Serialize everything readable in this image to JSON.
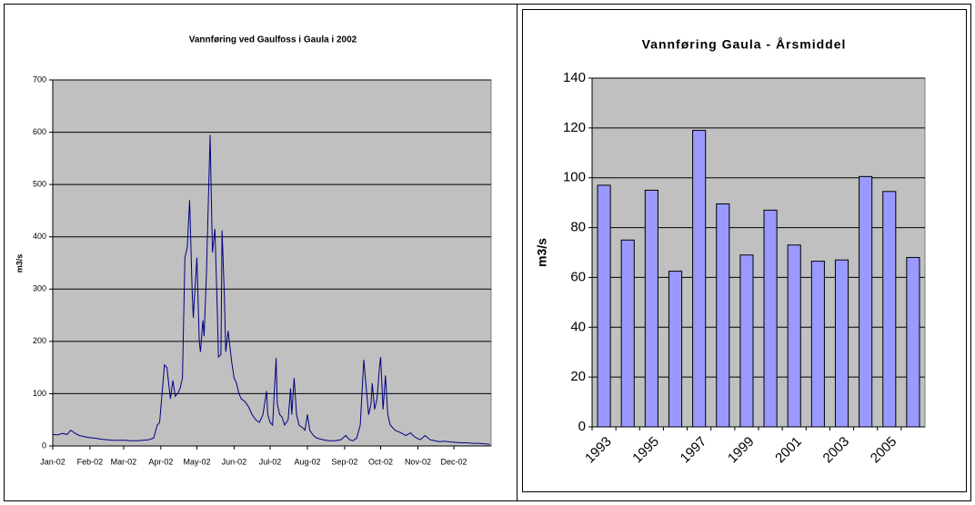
{
  "chart_data": [
    {
      "type": "line",
      "title": "Vannføring ved Gaulfoss i Gaula i 2002",
      "ylabel": "m3/s",
      "color": "#000080",
      "grid": true,
      "xlim": [
        0,
        365
      ],
      "xticks": [
        {
          "value": 0,
          "label": "Jan-02"
        },
        {
          "value": 31,
          "label": "Feb-02"
        },
        {
          "value": 59,
          "label": "Mar-02"
        },
        {
          "value": 90,
          "label": "Apr-02"
        },
        {
          "value": 120,
          "label": "May-02"
        },
        {
          "value": 151,
          "label": "Jun-02"
        },
        {
          "value": 181,
          "label": "Jul-02"
        },
        {
          "value": 212,
          "label": "Aug-02"
        },
        {
          "value": 243,
          "label": "Sep-02"
        },
        {
          "value": 273,
          "label": "Oct-02"
        },
        {
          "value": 304,
          "label": "Nov-02"
        },
        {
          "value": 334,
          "label": "Dec-02"
        }
      ],
      "ylim": [
        0,
        700
      ],
      "yticks": [
        0,
        100,
        200,
        300,
        400,
        500,
        600,
        700
      ],
      "x": [
        0,
        4,
        8,
        12,
        15,
        18,
        22,
        26,
        30,
        35,
        40,
        45,
        50,
        55,
        60,
        65,
        70,
        75,
        80,
        84,
        87,
        89,
        91,
        93,
        95,
        97,
        98,
        100,
        102,
        104,
        106,
        108,
        110,
        112,
        114,
        116,
        117,
        120,
        122,
        123,
        125,
        126,
        128,
        131,
        132,
        133,
        135,
        137,
        138,
        140,
        141,
        143,
        144,
        146,
        147,
        149,
        151,
        153,
        155,
        157,
        160,
        163,
        166,
        169,
        172,
        175,
        178,
        179,
        181,
        183,
        186,
        187,
        189,
        191,
        193,
        196,
        198,
        199,
        201,
        203,
        205,
        208,
        210,
        212,
        214,
        217,
        220,
        225,
        230,
        235,
        240,
        244,
        247,
        250,
        253,
        256,
        259,
        261,
        263,
        265,
        266,
        268,
        270,
        272,
        273,
        275,
        277,
        279,
        281,
        285,
        290,
        294,
        298,
        300,
        303,
        306,
        310,
        314,
        318,
        322,
        326,
        330,
        335,
        340,
        345,
        350,
        355,
        360,
        364
      ],
      "values": [
        22,
        21,
        24,
        22,
        30,
        25,
        20,
        18,
        16,
        15,
        13,
        12,
        11,
        11,
        11,
        10,
        10,
        11,
        12,
        15,
        40,
        45,
        100,
        155,
        150,
        110,
        90,
        125,
        95,
        100,
        110,
        130,
        360,
        380,
        470,
        300,
        245,
        360,
        200,
        180,
        240,
        210,
        330,
        595,
        480,
        370,
        415,
        260,
        170,
        175,
        412,
        280,
        180,
        220,
        200,
        160,
        130,
        120,
        100,
        90,
        85,
        75,
        60,
        50,
        45,
        60,
        105,
        60,
        45,
        40,
        168,
        80,
        60,
        55,
        40,
        50,
        110,
        60,
        130,
        60,
        40,
        35,
        30,
        60,
        30,
        20,
        15,
        12,
        10,
        10,
        12,
        20,
        12,
        10,
        15,
        40,
        165,
        110,
        60,
        80,
        120,
        70,
        90,
        150,
        170,
        70,
        135,
        60,
        40,
        30,
        25,
        20,
        25,
        20,
        15,
        12,
        20,
        12,
        10,
        8,
        9,
        8,
        7,
        6,
        6,
        5,
        5,
        4,
        3
      ]
    },
    {
      "type": "bar",
      "title": "Vannføring Gaula - Årsmiddel",
      "ylabel": "m3/s",
      "color": "#9999ff",
      "grid": true,
      "categories": [
        "1993",
        null,
        "1995",
        null,
        "1997",
        null,
        "1999",
        null,
        "2001",
        null,
        "2003",
        null,
        "2005",
        null
      ],
      "values": [
        97,
        75,
        95,
        62.5,
        119,
        89.5,
        69,
        87,
        73,
        66.5,
        67,
        100.5,
        94.5,
        68
      ],
      "ylim": [
        0,
        140
      ],
      "yticks": [
        0,
        20,
        40,
        60,
        80,
        100,
        120,
        140
      ]
    }
  ]
}
